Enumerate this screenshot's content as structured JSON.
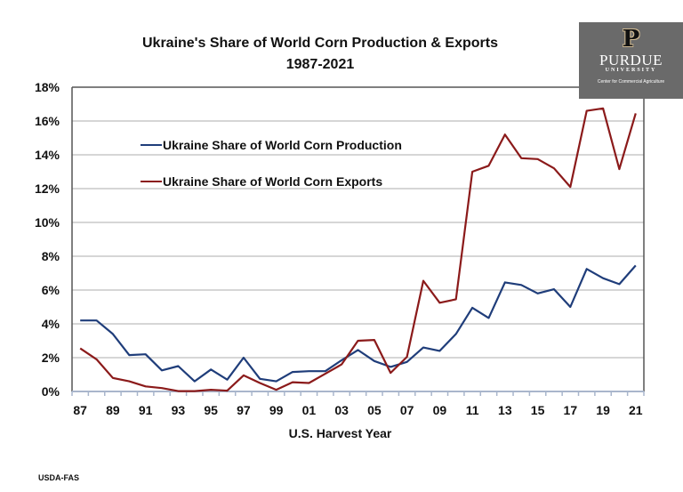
{
  "title": {
    "line1": "Ukraine's Share of World Corn Production & Exports",
    "line2": "1987-2021"
  },
  "logo": {
    "mark": "P",
    "name": "PURDUE",
    "sub": "UNIVERSITY",
    "center": "Center for Commercial Agriculture",
    "bg": "#6a6a6a"
  },
  "source": "USDA-FAS",
  "colors": {
    "production": "#1f3d7a",
    "exports": "#8b1a1a"
  },
  "chart_data": {
    "type": "line",
    "title": "Ukraine's Share of World Corn Production & Exports 1987-2021",
    "xlabel": "U.S. Harvest Year",
    "ylabel": "",
    "ylim": [
      0,
      18
    ],
    "yticks": [
      "0%",
      "2%",
      "4%",
      "6%",
      "8%",
      "10%",
      "12%",
      "14%",
      "16%",
      "18%"
    ],
    "xtick_labels": [
      "87",
      "89",
      "91",
      "93",
      "95",
      "97",
      "99",
      "01",
      "03",
      "05",
      "07",
      "09",
      "11",
      "13",
      "15",
      "17",
      "19",
      "21"
    ],
    "grid": true,
    "legend_position": "upper-left inside",
    "x": [
      "87",
      "88",
      "89",
      "90",
      "91",
      "92",
      "93",
      "94",
      "95",
      "96",
      "97",
      "98",
      "99",
      "00",
      "01",
      "02",
      "03",
      "04",
      "05",
      "06",
      "07",
      "08",
      "09",
      "10",
      "11",
      "12",
      "13",
      "14",
      "15",
      "16",
      "17",
      "18",
      "19",
      "20",
      "21"
    ],
    "series": [
      {
        "name": "Ukraine Share of World Corn Production",
        "color": "#1f3d7a",
        "values": [
          4.2,
          4.2,
          3.4,
          2.15,
          2.2,
          1.25,
          1.5,
          0.6,
          1.3,
          0.7,
          2.0,
          0.75,
          0.6,
          1.15,
          1.2,
          1.2,
          1.85,
          2.45,
          1.8,
          1.45,
          1.75,
          2.6,
          2.4,
          3.4,
          4.95,
          4.35,
          6.45,
          6.3,
          5.8,
          6.05,
          5.0,
          7.25,
          6.7,
          6.35,
          7.45
        ]
      },
      {
        "name": "Ukraine Share of World Corn Exports",
        "color": "#8b1a1a",
        "values": [
          2.55,
          1.9,
          0.8,
          0.6,
          0.3,
          0.2,
          0.02,
          0.02,
          0.1,
          0.05,
          0.95,
          0.5,
          0.1,
          0.55,
          0.5,
          1.05,
          1.6,
          3.0,
          3.05,
          1.1,
          2.05,
          6.55,
          5.25,
          5.45,
          13.0,
          13.35,
          15.2,
          13.8,
          13.75,
          13.2,
          12.1,
          16.6,
          16.75,
          13.15,
          16.45
        ]
      }
    ]
  }
}
